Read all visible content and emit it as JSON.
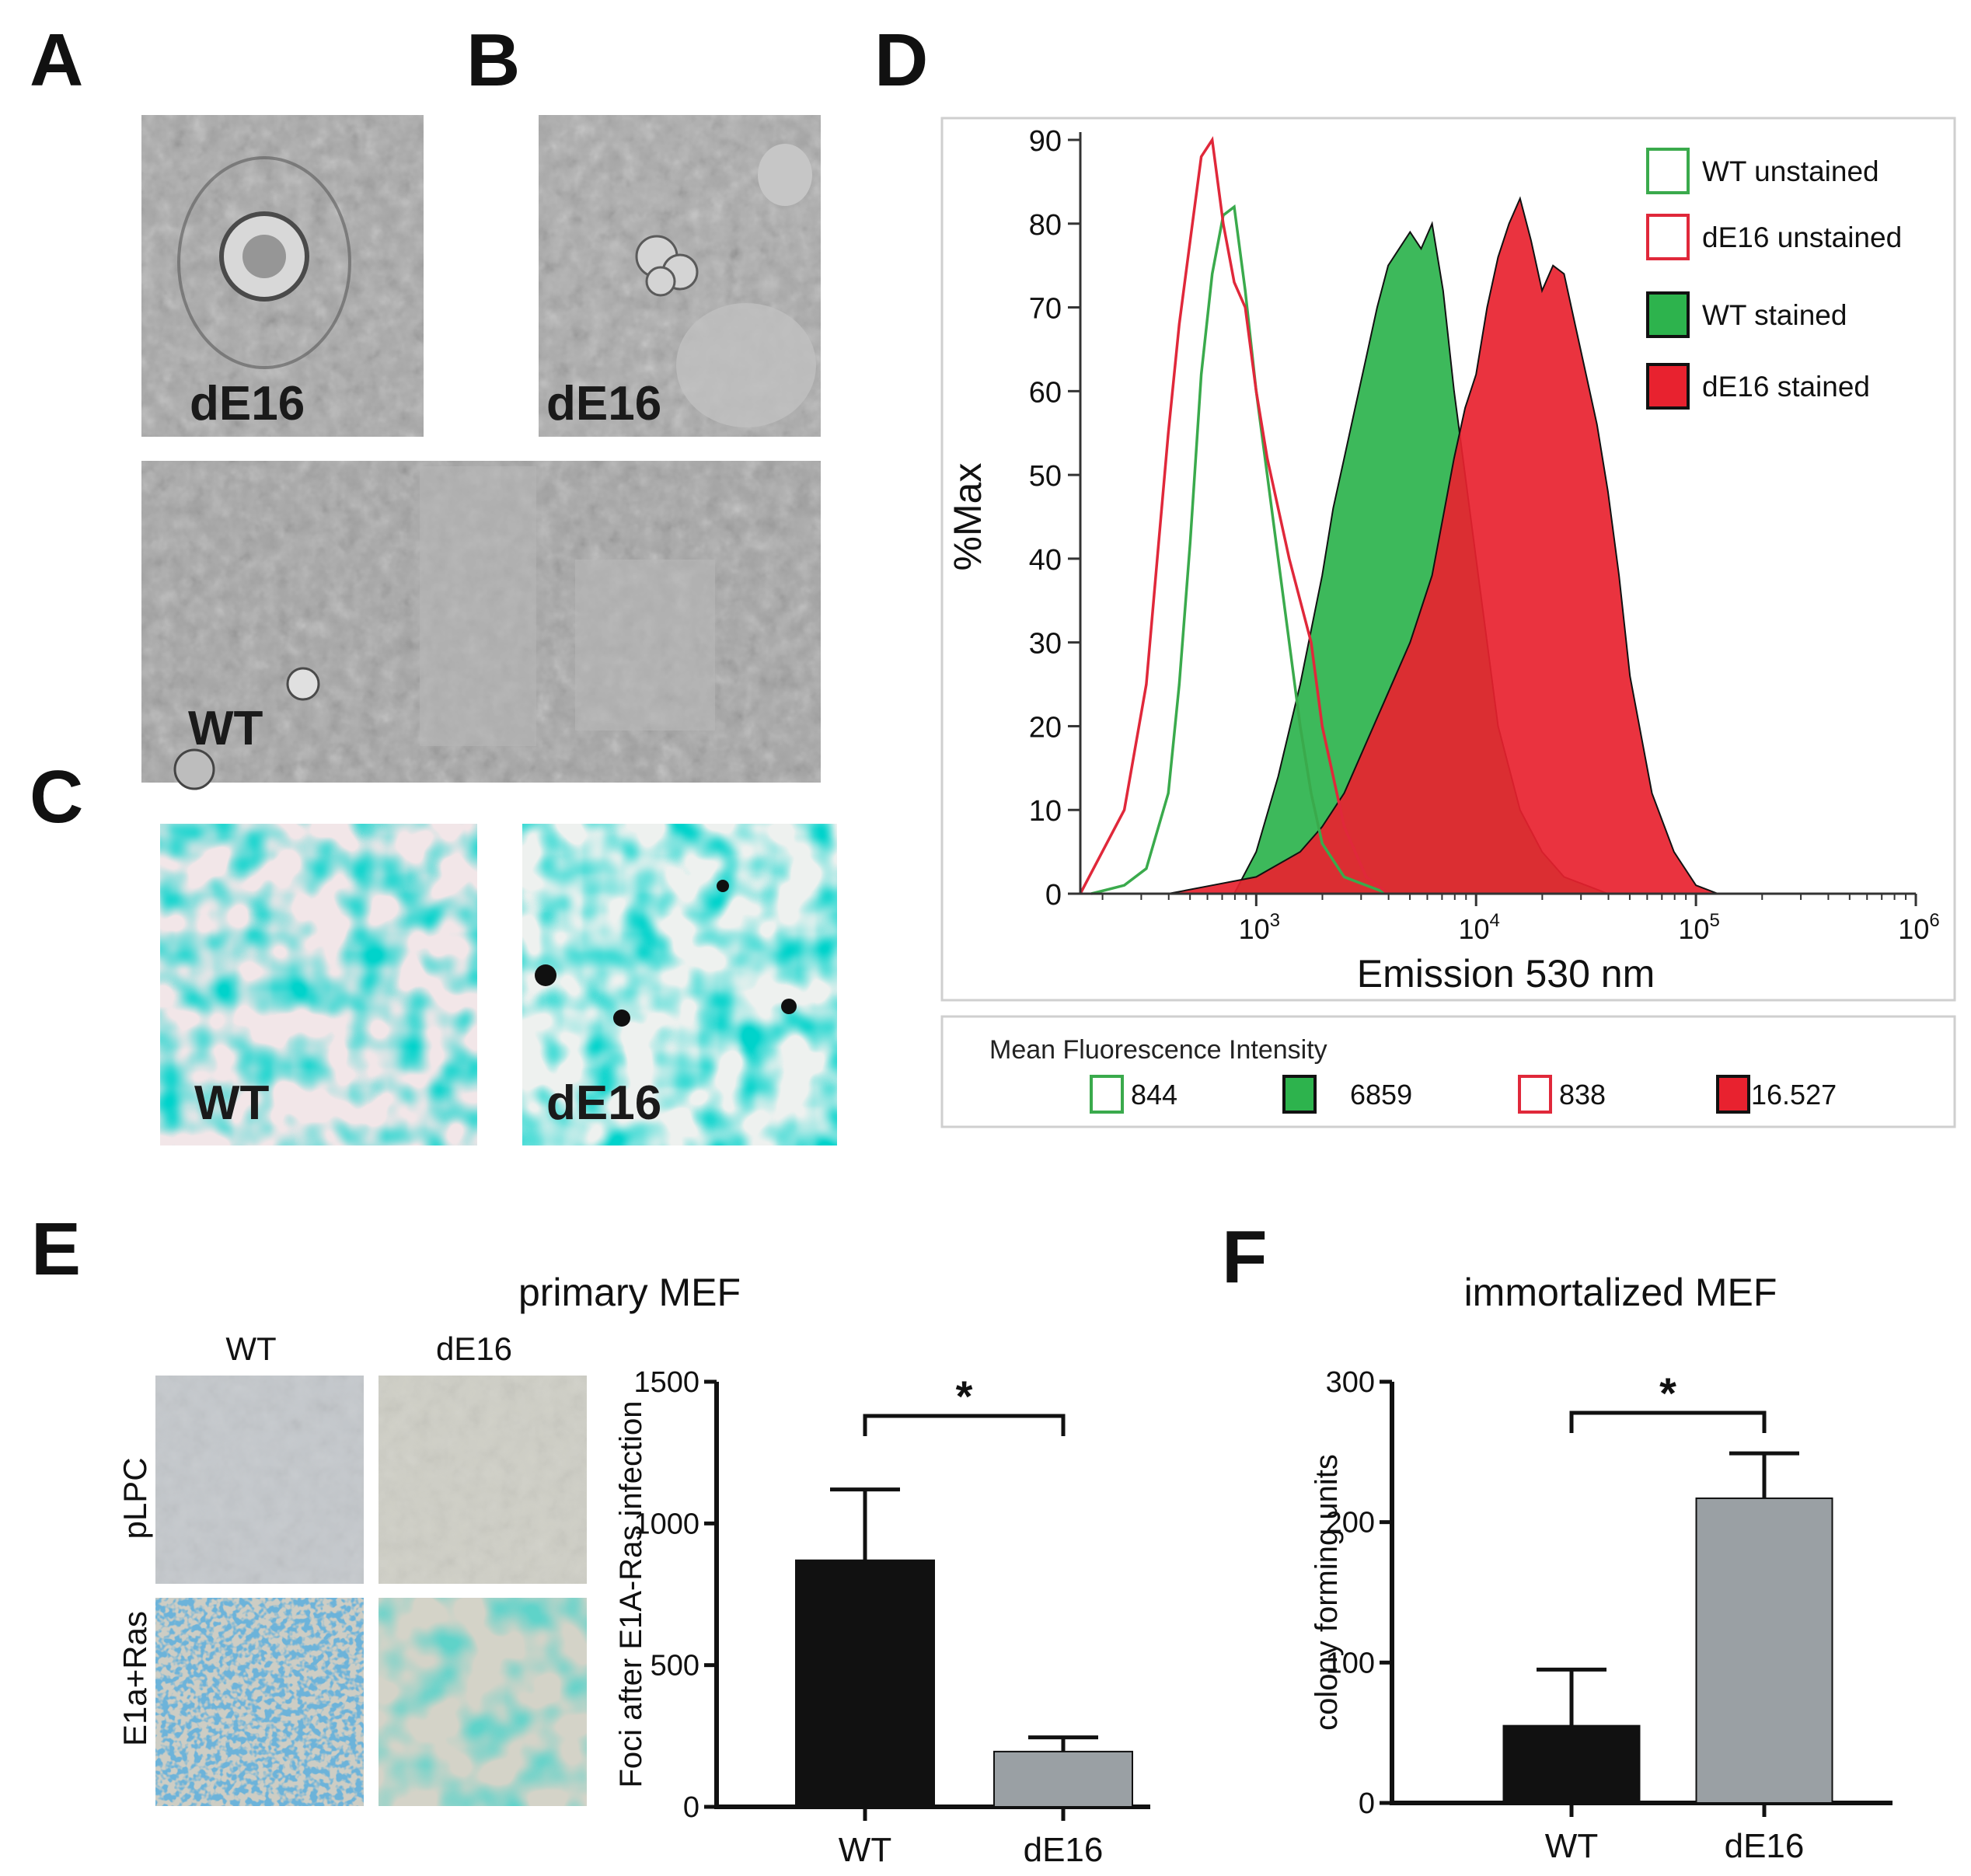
{
  "panel_letters": {
    "a": "A",
    "b": "B",
    "c": "C",
    "d": "D",
    "e": "E",
    "f": "F"
  },
  "panel_a": {
    "label": "dE16"
  },
  "panel_b": {
    "label": "dE16",
    "bottom_label": "WT"
  },
  "panel_c": {
    "left_label": "WT",
    "right_label": "dE16"
  },
  "panel_d": {
    "mfi_title": "Mean Fluorescence Intensity",
    "mfi_values": [
      "844",
      "6859",
      "838",
      "16.527"
    ]
  },
  "panel_e": {
    "title": "primary MEF",
    "col_labels": [
      "WT",
      "dE16"
    ],
    "row_labels": [
      "pLPC",
      "E1a+Ras"
    ]
  },
  "panel_f": {
    "title": "immortalized MEF"
  },
  "colors": {
    "green": "#2db34d",
    "green_line": "#3aaa4c",
    "red": "#e8222f",
    "red_line": "#e0283a",
    "black_bar": "#111111",
    "gray_bar": "#9aa0a4"
  },
  "chart_data": [
    {
      "id": "D",
      "type": "area",
      "xlabel": "Emission 530 nm",
      "ylabel": "%Max",
      "xscale": "log",
      "xlim_log10": [
        2.2,
        6.0
      ],
      "ylim": [
        0,
        90
      ],
      "yticks": [
        "0",
        "10",
        "20",
        "30",
        "40",
        "50",
        "60",
        "70",
        "80",
        "90"
      ],
      "xticks": [
        {
          "base": "10",
          "exp": "3",
          "log": 3
        },
        {
          "base": "10",
          "exp": "4",
          "log": 4
        },
        {
          "base": "10",
          "exp": "5",
          "log": 5
        },
        {
          "base": "10",
          "exp": "6",
          "log": 6
        }
      ],
      "legend_placement": "top-right",
      "series": [
        {
          "name": "WT unstained",
          "style": "outline",
          "color": "#3aaa4c",
          "x_log10": [
            2.25,
            2.4,
            2.5,
            2.6,
            2.65,
            2.7,
            2.75,
            2.8,
            2.85,
            2.9,
            2.95,
            3.0,
            3.05,
            3.1,
            3.15,
            3.2,
            3.25,
            3.3,
            3.4,
            3.5,
            3.6
          ],
          "y": [
            0,
            1,
            3,
            12,
            25,
            42,
            62,
            74,
            81,
            82,
            72,
            60,
            50,
            40,
            30,
            20,
            12,
            6,
            2,
            1,
            0
          ]
        },
        {
          "name": "dE16 unstained",
          "style": "outline",
          "color": "#e0283a",
          "x_log10": [
            2.2,
            2.3,
            2.4,
            2.5,
            2.55,
            2.6,
            2.65,
            2.7,
            2.75,
            2.8,
            2.85,
            2.9,
            2.95,
            3.0,
            3.05,
            3.1,
            3.15,
            3.2,
            3.25,
            3.3,
            3.4,
            3.5,
            3.6
          ],
          "y": [
            0,
            5,
            10,
            25,
            40,
            55,
            68,
            78,
            88,
            90,
            80,
            73,
            70,
            60,
            52,
            46,
            40,
            35,
            30,
            20,
            8,
            2,
            0
          ]
        },
        {
          "name": "WT stained",
          "style": "filled",
          "color": "#2db34d",
          "x_log10": [
            2.9,
            3.0,
            3.1,
            3.2,
            3.3,
            3.35,
            3.4,
            3.45,
            3.5,
            3.55,
            3.6,
            3.65,
            3.7,
            3.75,
            3.8,
            3.85,
            3.9,
            3.95,
            4.0,
            4.05,
            4.1,
            4.2,
            4.3,
            4.4,
            4.5,
            4.6
          ],
          "y": [
            0,
            5,
            14,
            25,
            38,
            46,
            52,
            58,
            64,
            70,
            75,
            77,
            79,
            77,
            80,
            72,
            60,
            50,
            40,
            30,
            20,
            10,
            5,
            2,
            1,
            0
          ]
        },
        {
          "name": "dE16 stained",
          "style": "filled",
          "color": "#e8222f",
          "x_log10": [
            2.6,
            2.8,
            3.0,
            3.2,
            3.3,
            3.4,
            3.5,
            3.6,
            3.7,
            3.8,
            3.85,
            3.9,
            3.95,
            4.0,
            4.05,
            4.1,
            4.15,
            4.2,
            4.25,
            4.3,
            4.35,
            4.4,
            4.45,
            4.5,
            4.55,
            4.6,
            4.65,
            4.7,
            4.8,
            4.9,
            5.0,
            5.1
          ],
          "y": [
            0,
            1,
            2,
            5,
            8,
            12,
            18,
            24,
            30,
            38,
            45,
            52,
            58,
            62,
            70,
            76,
            80,
            83,
            78,
            72,
            75,
            74,
            68,
            62,
            56,
            48,
            38,
            26,
            12,
            5,
            1,
            0
          ]
        }
      ]
    },
    {
      "id": "E",
      "type": "bar",
      "ylabel": "Foci after E1A-Ras infection",
      "ylim": [
        0,
        1500
      ],
      "yticks": [
        "0",
        "500",
        "1000",
        "1500"
      ],
      "categories": [
        "WT",
        "dE16"
      ],
      "values": [
        870,
        195
      ],
      "errors": [
        250,
        50
      ],
      "significance": "*"
    },
    {
      "id": "F",
      "type": "bar",
      "ylabel": "colony forming units",
      "ylim": [
        0,
        300
      ],
      "yticks": [
        "0",
        "100",
        "200",
        "300"
      ],
      "categories": [
        "WT",
        "dE16"
      ],
      "values": [
        55,
        217
      ],
      "errors": [
        40,
        32
      ],
      "significance": "*"
    }
  ]
}
